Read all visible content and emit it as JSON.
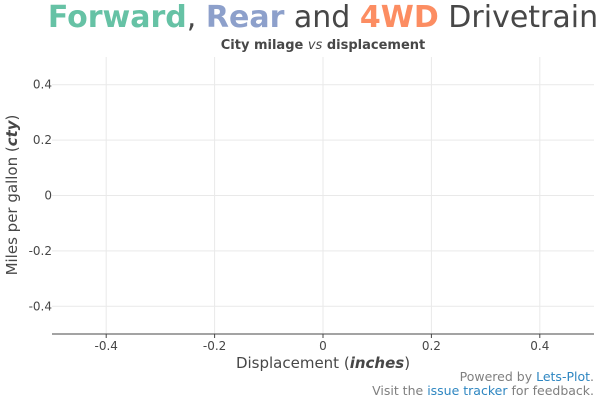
{
  "chart_data": {
    "type": "scatter",
    "title_parts": [
      {
        "text": "Forward",
        "color": "#66c2a5",
        "bold": true
      },
      {
        "text": ", ",
        "color": "#474747",
        "bold": false
      },
      {
        "text": "Rear",
        "color": "#8da0cb",
        "bold": true
      },
      {
        "text": " and ",
        "color": "#474747",
        "bold": false
      },
      {
        "text": "4WD",
        "color": "#fc8d62",
        "bold": true
      },
      {
        "text": " Drivetrain",
        "color": "#474747",
        "bold": false
      }
    ],
    "subtitle": {
      "part1": "City milage ",
      "part2": "vs",
      "part3": " displacement"
    },
    "xlabel": {
      "part1": "Displacement (",
      "part2": "inches",
      "part3": ")"
    },
    "ylabel": {
      "part1": "Miles per gallon (",
      "part2": "cty",
      "part3": ")"
    },
    "xlim": [
      -0.5,
      0.5
    ],
    "ylim": [
      -0.5,
      0.5
    ],
    "x_ticks": [
      -0.4,
      -0.2,
      0,
      0.2,
      0.4
    ],
    "y_ticks": [
      0.4,
      0.2,
      0,
      -0.2,
      -0.4
    ],
    "x_tick_labels": [
      "-0.4",
      "-0.2",
      "0",
      "0.2",
      "0.4"
    ],
    "y_tick_labels": [
      "0.4",
      "0.2",
      "0",
      "-0.2",
      "-0.4"
    ],
    "grid": true,
    "points": []
  },
  "caption": {
    "line1_prefix": "Powered by ",
    "line1_link": "Lets-Plot",
    "line1_suffix": ".",
    "line2_prefix": "Visit the ",
    "line2_link": "issue tracker",
    "line2_suffix": " for feedback."
  },
  "colors": {
    "grid": "#e9e9e9",
    "axis": "#474747",
    "text": "#474747"
  }
}
